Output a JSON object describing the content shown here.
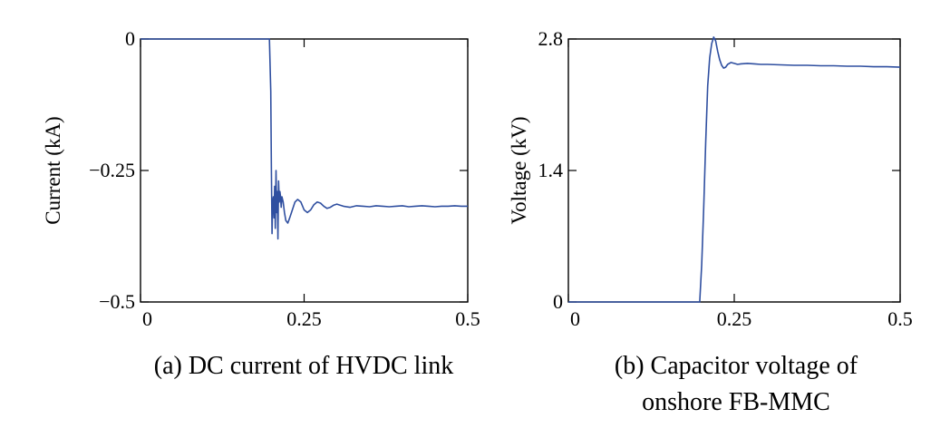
{
  "chart_data": [
    {
      "type": "line",
      "caption": "(a) DC current of HVDC link",
      "xlabel": "",
      "ylabel": "Current (kA)",
      "xlim": [
        0,
        0.5
      ],
      "ylim": [
        -0.5,
        0
      ],
      "xticks": [
        0,
        0.25,
        0.5
      ],
      "xtick_labels": [
        "0",
        "0.25",
        "0.5"
      ],
      "yticks": [
        -0.5,
        -0.25,
        0
      ],
      "ytick_labels": [
        "−0.5",
        "−0.25",
        "0"
      ],
      "grid": false,
      "color": "#2f4fa0",
      "series": [
        {
          "x": [
            0,
            0.195,
            0.197,
            0.199,
            0.2,
            0.201,
            0.202,
            0.203,
            0.204,
            0.205,
            0.206,
            0.207,
            0.208,
            0.209,
            0.21,
            0.211,
            0.212,
            0.213,
            0.214,
            0.215,
            0.216,
            0.218,
            0.22,
            0.222,
            0.225,
            0.228,
            0.232,
            0.236,
            0.24,
            0.245,
            0.25,
            0.255,
            0.26,
            0.265,
            0.27,
            0.275,
            0.28,
            0.285,
            0.29,
            0.295,
            0.3,
            0.31,
            0.32,
            0.33,
            0.34,
            0.35,
            0.36,
            0.37,
            0.38,
            0.39,
            0.4,
            0.41,
            0.42,
            0.43,
            0.44,
            0.45,
            0.46,
            0.47,
            0.48,
            0.49,
            0.5
          ],
          "y": [
            0,
            0,
            0,
            -0.1,
            -0.25,
            -0.37,
            -0.31,
            -0.3,
            -0.34,
            -0.28,
            -0.36,
            -0.25,
            -0.33,
            -0.29,
            -0.38,
            -0.27,
            -0.31,
            -0.29,
            -0.3,
            -0.32,
            -0.3,
            -0.31,
            -0.33,
            -0.345,
            -0.35,
            -0.34,
            -0.325,
            -0.31,
            -0.305,
            -0.31,
            -0.325,
            -0.33,
            -0.325,
            -0.315,
            -0.31,
            -0.312,
            -0.318,
            -0.322,
            -0.32,
            -0.316,
            -0.314,
            -0.318,
            -0.32,
            -0.317,
            -0.318,
            -0.319,
            -0.317,
            -0.318,
            -0.319,
            -0.318,
            -0.317,
            -0.319,
            -0.318,
            -0.317,
            -0.318,
            -0.319,
            -0.318,
            -0.318,
            -0.317,
            -0.318,
            -0.318
          ]
        }
      ]
    },
    {
      "type": "line",
      "caption": "(b) Capacitor voltage of onshore FB-MMC",
      "caption_lines": [
        "(b) Capacitor voltage of",
        "onshore FB-MMC"
      ],
      "xlabel": "",
      "ylabel": "Voltage (kV)",
      "xlim": [
        0,
        0.5
      ],
      "ylim": [
        0,
        2.8
      ],
      "xticks": [
        0,
        0.25,
        0.5
      ],
      "xtick_labels": [
        "0",
        "0.25",
        "0.5"
      ],
      "yticks": [
        0,
        1.4,
        2.8
      ],
      "ytick_labels": [
        "0",
        "1.4",
        "2.8"
      ],
      "grid": false,
      "color": "#2f4fa0",
      "series": [
        {
          "x": [
            0,
            0.198,
            0.201,
            0.204,
            0.207,
            0.21,
            0.213,
            0.216,
            0.219,
            0.222,
            0.225,
            0.228,
            0.231,
            0.234,
            0.237,
            0.24,
            0.245,
            0.25,
            0.255,
            0.26,
            0.27,
            0.28,
            0.29,
            0.3,
            0.32,
            0.34,
            0.36,
            0.38,
            0.4,
            0.42,
            0.44,
            0.46,
            0.48,
            0.5
          ],
          "y": [
            0,
            0,
            0.4,
            1.0,
            1.7,
            2.3,
            2.6,
            2.75,
            2.82,
            2.78,
            2.67,
            2.58,
            2.52,
            2.49,
            2.5,
            2.53,
            2.55,
            2.54,
            2.53,
            2.535,
            2.54,
            2.535,
            2.53,
            2.53,
            2.525,
            2.52,
            2.52,
            2.515,
            2.515,
            2.51,
            2.51,
            2.505,
            2.505,
            2.5
          ]
        }
      ]
    }
  ]
}
